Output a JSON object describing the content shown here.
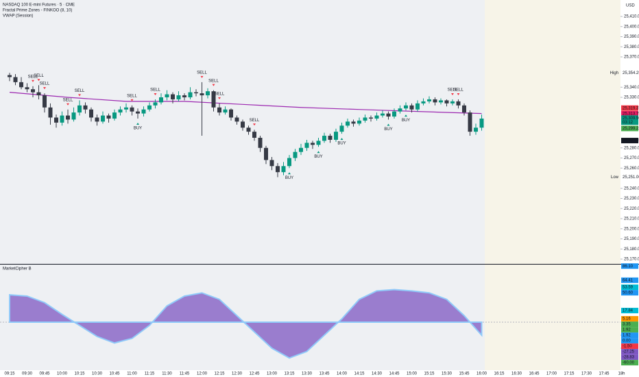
{
  "header": {
    "symbol": "NASDAQ 100 E-mini Futures · 5 · CME",
    "indicator_1": "Fractal Prime Zones - FINKOO (8, 10)",
    "indicator_2": "VWAP (Session)",
    "currency": "USD"
  },
  "price_pane": {
    "yticks": [
      {
        "value": 25170,
        "label": "25,170.00"
      },
      {
        "value": 25180,
        "label": "25,180.00"
      },
      {
        "value": 25190,
        "label": "25,190.00"
      },
      {
        "value": 25200,
        "label": "25,200.00"
      },
      {
        "value": 25210,
        "label": "25,210.00"
      },
      {
        "value": 25220,
        "label": "25,220.00"
      },
      {
        "value": 25230,
        "label": "25,230.00"
      },
      {
        "value": 25240,
        "label": "25,240.00"
      },
      {
        "value": 25260,
        "label": "25,260.00"
      },
      {
        "value": 25270,
        "label": "25,270.00"
      },
      {
        "value": 25280,
        "label": "25,280.00"
      },
      {
        "value": 25330,
        "label": "25,330.00"
      },
      {
        "value": 25340,
        "label": "25,340.00"
      },
      {
        "value": 25370,
        "label": "25,370.00"
      },
      {
        "value": 25380,
        "label": "25,380.00"
      },
      {
        "value": 25390,
        "label": "25,390.00"
      },
      {
        "value": 25400,
        "label": "25,400.00"
      },
      {
        "value": 25410,
        "label": "25,410.00"
      }
    ],
    "candles": [
      [
        25352,
        25354.25,
        25346,
        25350
      ],
      [
        25350,
        25353,
        25342,
        25345
      ],
      [
        25345,
        25350,
        25338,
        25340
      ],
      [
        25340,
        25344,
        25335,
        25338
      ],
      [
        25338,
        25341,
        25330,
        25335
      ],
      [
        25335,
        25342,
        25328,
        25332
      ],
      [
        25332,
        25334,
        25315,
        25320
      ],
      [
        25320,
        25324,
        25303,
        25310
      ],
      [
        25310,
        25313,
        25300,
        25305
      ],
      [
        25305,
        25316,
        25302,
        25312
      ],
      [
        25312,
        25318,
        25304,
        25308
      ],
      [
        25308,
        25320,
        25306,
        25315
      ],
      [
        25315,
        25327,
        25312,
        25322
      ],
      [
        25322,
        25325,
        25314,
        25318
      ],
      [
        25318,
        25320,
        25306,
        25310
      ],
      [
        25310,
        25313,
        25302,
        25306
      ],
      [
        25306,
        25316,
        25304,
        25312
      ],
      [
        25312,
        25314,
        25305,
        25309
      ],
      [
        25309,
        25318,
        25307,
        25315
      ],
      [
        25315,
        25321,
        25312,
        25318
      ],
      [
        25318,
        25324,
        25315,
        25320
      ],
      [
        25320,
        25322,
        25312,
        25316
      ],
      [
        25316,
        25319,
        25309,
        25314
      ],
      [
        25314,
        25321,
        25311,
        25318
      ],
      [
        25318,
        25325,
        25316,
        25322
      ],
      [
        25322,
        25328,
        25319,
        25325
      ],
      [
        25325,
        25334,
        25323,
        25330
      ],
      [
        25330,
        25337,
        25327,
        25333
      ],
      [
        25333,
        25335,
        25324,
        25328
      ],
      [
        25328,
        25336,
        25326,
        25332
      ],
      [
        25332,
        25334,
        25327,
        25330
      ],
      [
        25330,
        25340,
        25328,
        25335
      ],
      [
        25335,
        25338,
        25331,
        25334
      ],
      [
        25334,
        25345,
        25292,
        25332
      ],
      [
        25332,
        25339,
        25329,
        25336
      ],
      [
        25336,
        25337,
        25316,
        25320
      ],
      [
        25320,
        25324,
        25312,
        25315
      ],
      [
        25315,
        25321,
        25313,
        25318
      ],
      [
        25318,
        25319,
        25307,
        25310
      ],
      [
        25310,
        25312,
        25303,
        25306
      ],
      [
        25306,
        25308,
        25297,
        25300
      ],
      [
        25300,
        25302,
        25293,
        25296
      ],
      [
        25296,
        25298,
        25287,
        25290
      ],
      [
        25290,
        25292,
        25276,
        25280
      ],
      [
        25280,
        25282,
        25264,
        25268
      ],
      [
        25268,
        25271,
        25258,
        25262
      ],
      [
        25262,
        25265,
        25251,
        25256
      ],
      [
        25256,
        25266,
        25253,
        25262
      ],
      [
        25262,
        25273,
        25260,
        25270
      ],
      [
        25270,
        25279,
        25267,
        25276
      ],
      [
        25276,
        25284,
        25273,
        25280
      ],
      [
        25280,
        25288,
        25277,
        25285
      ],
      [
        25285,
        25287,
        25279,
        25283
      ],
      [
        25283,
        25290,
        25281,
        25287
      ],
      [
        25287,
        25295,
        25285,
        25292
      ],
      [
        25292,
        25294,
        25285,
        25288
      ],
      [
        25288,
        25299,
        25286,
        25296
      ],
      [
        25296,
        25305,
        25294,
        25302
      ],
      [
        25302,
        25309,
        25300,
        25306
      ],
      [
        25306,
        25308,
        25301,
        25304
      ],
      [
        25304,
        25310,
        25302,
        25307
      ],
      [
        25307,
        25313,
        25305,
        25310
      ],
      [
        25310,
        25312,
        25306,
        25309
      ],
      [
        25309,
        25315,
        25307,
        25312
      ],
      [
        25312,
        25317,
        25310,
        25314
      ],
      [
        25314,
        25316,
        25308,
        25311
      ],
      [
        25311,
        25319,
        25309,
        25316
      ],
      [
        25316,
        25322,
        25314,
        25319
      ],
      [
        25319,
        25325,
        25317,
        25322
      ],
      [
        25322,
        25324,
        25315,
        25318
      ],
      [
        25318,
        25327,
        25316,
        25324
      ],
      [
        25324,
        25329,
        25322,
        25326
      ],
      [
        25326,
        25331,
        25324,
        25328
      ],
      [
        25328,
        25330,
        25322,
        25325
      ],
      [
        25325,
        25329,
        25323,
        25327
      ],
      [
        25327,
        25328,
        25321,
        25324
      ],
      [
        25324,
        25328,
        25322,
        25326
      ],
      [
        25326,
        25328,
        25319,
        25322
      ],
      [
        25322,
        25324,
        25312,
        25315
      ],
      [
        25315,
        25317,
        25292,
        25296
      ],
      [
        25296,
        25304,
        25293,
        25300
      ],
      [
        25300,
        25313,
        25297,
        25309
      ]
    ],
    "vwap": {
      "color": "#9c27b0",
      "bars": [
        0,
        10,
        20,
        30,
        40,
        50,
        60,
        70,
        81
      ],
      "values": [
        25335,
        25330,
        25326,
        25326,
        25323,
        25320,
        25318,
        25316,
        25314
      ]
    },
    "signals": [
      {
        "label": "SELL",
        "bar": 4
      },
      {
        "label": "SELL",
        "bar": 5
      },
      {
        "label": "SELL",
        "bar": 6
      },
      {
        "label": "SELL",
        "bar": 10
      },
      {
        "label": "SELL",
        "bar": 12
      },
      {
        "label": "BUY",
        "bar": 22
      },
      {
        "label": "SELL",
        "bar": 21
      },
      {
        "label": "SELL",
        "bar": 25
      },
      {
        "label": "SELL",
        "bar": 33
      },
      {
        "label": "SELL",
        "bar": 35
      },
      {
        "label": "SELL",
        "bar": 36
      },
      {
        "label": "SELL",
        "bar": 42
      },
      {
        "label": "BUY",
        "bar": 48
      },
      {
        "label": "BUY",
        "bar": 53
      },
      {
        "label": "BUY",
        "bar": 57
      },
      {
        "label": "BUY",
        "bar": 65
      },
      {
        "label": "BUY",
        "bar": 68
      },
      {
        "label": "SELL",
        "bar": 76
      },
      {
        "label": "SELL",
        "bar": 77
      }
    ],
    "badges": [
      {
        "value": 25354.25,
        "label": "25,354.25",
        "tag": "High",
        "color": "#ffffff"
      },
      {
        "value": 25319.37,
        "label": "25,319.37",
        "color": "#f23645"
      },
      {
        "value": 25313.75,
        "label": "25,313.75",
        "color": "#e91e63"
      },
      {
        "value": 25309.5,
        "label": "25,309.50",
        "sub": "03:12",
        "color": "#089981"
      },
      {
        "value": 25299.22,
        "label": "25,299.22",
        "color": "#4caf50"
      },
      {
        "value": 25287.25,
        "label": "25,287.25",
        "color": "#131722"
      },
      {
        "value": 25251,
        "label": "25,251.00",
        "tag": "Low",
        "color": "#ffffff"
      }
    ]
  },
  "indicator_pane": {
    "title": "MarketCipher B",
    "yticks": [
      {
        "value": -20,
        "label": "-20.00"
      },
      {
        "value": -40,
        "label": "-40.00"
      }
    ],
    "wave": {
      "color": "#7e57c2",
      "bars": [
        0,
        3,
        6,
        9,
        12,
        15,
        18,
        21,
        24,
        27,
        30,
        33,
        36,
        39,
        42,
        45,
        48,
        51,
        54,
        57,
        60,
        63,
        66,
        69,
        72,
        75,
        78,
        81
      ],
      "values": [
        42,
        40,
        30,
        12,
        -5,
        -22,
        -32,
        -25,
        -5,
        25,
        40,
        45,
        35,
        10,
        -15,
        -40,
        -55,
        -45,
        -20,
        5,
        35,
        48,
        50,
        48,
        45,
        35,
        10,
        -20
      ]
    },
    "badges": [
      {
        "value": 86.1,
        "label": "86.10",
        "color": "#2196f3"
      },
      {
        "value": 64.41,
        "label": "64.41",
        "color": "#2196f3"
      },
      {
        "value": 53.59,
        "label": "53.59",
        "color": "#00bcd4"
      },
      {
        "value": 50.6,
        "label": "50.60",
        "color": "#2196f3"
      },
      {
        "value": 17.84,
        "label": "17.84",
        "color": "#00bcd4"
      },
      {
        "value": 5.16,
        "label": "5.16",
        "color": "#ff9800"
      },
      {
        "value": 3.35,
        "label": "3.35",
        "color": "#4caf50"
      },
      {
        "value": 1.92,
        "label": "1.92",
        "color": "#4caf50"
      },
      {
        "value": 1.92,
        "label": "1.92",
        "color": "#2196f3"
      },
      {
        "value": 0,
        "label": "0.00",
        "color": "#2196f3"
      },
      {
        "value": -1.5,
        "label": "-1.50",
        "color": "#f23645"
      },
      {
        "value": -27.25,
        "label": "-27.25",
        "color": "#7e57c2"
      },
      {
        "value": -28.83,
        "label": "-28.83",
        "color": "#7e57c2"
      },
      {
        "value": -60,
        "label": "-60.00",
        "color": "#4caf50"
      }
    ]
  },
  "time_axis": [
    "09:15",
    "09:30",
    "09:45",
    "10:00",
    "10:15",
    "10:30",
    "10:45",
    "11:00",
    "11:15",
    "11:30",
    "11:45",
    "12:00",
    "12:15",
    "12:30",
    "12:45",
    "13:00",
    "13:15",
    "13:30",
    "13:45",
    "14:00",
    "14:15",
    "14:30",
    "14:45",
    "15:00",
    "15:15",
    "15:30",
    "15:45",
    "16:00",
    "16:15",
    "16:30",
    "16:45",
    "17:00",
    "17:15",
    "17:30",
    "17:45",
    "18h"
  ]
}
